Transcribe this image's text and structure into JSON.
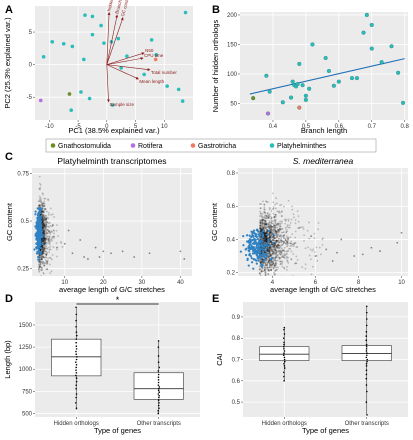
{
  "colors": {
    "panel_bg": "#ebebeb",
    "grid_major": "#ffffff",
    "grid_minor": "#f4f4f4",
    "gnathostomulida": "#6b8e23",
    "rotifera": "#b46ee0",
    "gastrotricha": "#f07b63",
    "platyhelminthes": "#2bbcbc",
    "arrow": "#8b1a1a",
    "regression": "#1f6fb5",
    "density_blue": "#2f82c4"
  },
  "legend": {
    "items": [
      {
        "label": "Gnathostomulida",
        "color": "#6b8e23"
      },
      {
        "label": "Rotifera",
        "color": "#b46ee0"
      },
      {
        "label": "Gastrotricha",
        "color": "#f07b63"
      },
      {
        "label": "Platyhelminthes",
        "color": "#2bbcbc"
      }
    ]
  },
  "chart_data": [
    {
      "panel": "A",
      "type": "scatter",
      "xlabel": "PC1 (38.5% explained var.)",
      "ylabel": "PC2 (25.3% explained var.)",
      "xlim": [
        -12.5,
        15
      ],
      "ylim": [
        -8.5,
        9
      ],
      "xticks": [
        -10,
        -5,
        0,
        5,
        10
      ],
      "yticks": [
        -5,
        0,
        5
      ],
      "points": [
        {
          "x": -11.5,
          "y": -5.5,
          "group": "rotifera"
        },
        {
          "x": -6.5,
          "y": -4.5,
          "group": "gnathostomulida"
        },
        {
          "x": 8.5,
          "y": 0.8,
          "group": "gastrotricha"
        },
        {
          "x": -11,
          "y": 1.2,
          "group": "platyhelminthes"
        },
        {
          "x": -9.5,
          "y": 3.5,
          "group": "platyhelminthes"
        },
        {
          "x": -7.5,
          "y": 3.2,
          "group": "platyhelminthes"
        },
        {
          "x": -6,
          "y": 2.8,
          "group": "platyhelminthes"
        },
        {
          "x": -4,
          "y": 0.8,
          "group": "platyhelminthes"
        },
        {
          "x": -3.8,
          "y": 7.6,
          "group": "platyhelminthes"
        },
        {
          "x": -2.5,
          "y": 7.4,
          "group": "platyhelminthes"
        },
        {
          "x": -1,
          "y": 6.0,
          "group": "platyhelminthes"
        },
        {
          "x": -2.5,
          "y": 4.6,
          "group": "platyhelminthes"
        },
        {
          "x": -0.5,
          "y": 3.3,
          "group": "platyhelminthes"
        },
        {
          "x": 0.8,
          "y": 3.5,
          "group": "platyhelminthes"
        },
        {
          "x": 2,
          "y": 4.0,
          "group": "platyhelminthes"
        },
        {
          "x": -4.5,
          "y": -4.2,
          "group": "platyhelminthes"
        },
        {
          "x": -3,
          "y": -5.2,
          "group": "platyhelminthes"
        },
        {
          "x": -6.2,
          "y": -7.0,
          "group": "platyhelminthes"
        },
        {
          "x": 2.5,
          "y": -0.5,
          "group": "platyhelminthes"
        },
        {
          "x": 3.5,
          "y": 1.3,
          "group": "platyhelminthes"
        },
        {
          "x": 6.5,
          "y": -1.5,
          "group": "platyhelminthes"
        },
        {
          "x": 7.8,
          "y": 3.8,
          "group": "platyhelminthes"
        },
        {
          "x": 8.6,
          "y": 1.5,
          "group": "platyhelminthes"
        },
        {
          "x": 10.5,
          "y": -3.3,
          "group": "platyhelminthes"
        },
        {
          "x": 12.5,
          "y": -3.8,
          "group": "platyhelminthes"
        },
        {
          "x": 13.7,
          "y": 8.0,
          "group": "platyhelminthes"
        },
        {
          "x": 13.2,
          "y": -5.6,
          "group": "platyhelminthes"
        },
        {
          "x": 1,
          "y": -6.2,
          "group": "platyhelminthes"
        }
      ],
      "loadings": [
        {
          "label": "hidden orthologs",
          "x": 0.4,
          "y": 8.0
        },
        {
          "label": "Branch length",
          "x": 1.8,
          "y": 7.6
        },
        {
          "label": "GC content",
          "x": 2.8,
          "y": 7.2
        },
        {
          "label": "Sample size",
          "x": 0.3,
          "y": -5.7
        },
        {
          "label": "Mean length",
          "x": 5.5,
          "y": -2.2
        },
        {
          "label": "Total number",
          "x": 7.5,
          "y": -0.8
        },
        {
          "label": "N50",
          "x": 6.5,
          "y": 1.8
        },
        {
          "label": "CPU time",
          "x": 6.3,
          "y": 1.0
        }
      ]
    },
    {
      "panel": "B",
      "type": "scatter",
      "xlabel": "Branch length",
      "ylabel": "Number of hidden orthologs",
      "xlim": [
        0.3,
        0.81
      ],
      "ylim": [
        22,
        205
      ],
      "xticks": [
        0.4,
        0.5,
        0.6,
        0.7,
        0.8
      ],
      "yticks": [
        50,
        100,
        150,
        200
      ],
      "regression": {
        "x": [
          0.33,
          0.8
        ],
        "y": [
          66,
          126
        ]
      },
      "points": [
        {
          "x": 0.34,
          "y": 59,
          "group": "gnathostomulida"
        },
        {
          "x": 0.385,
          "y": 33,
          "group": "rotifera"
        },
        {
          "x": 0.48,
          "y": 43,
          "group": "gastrotricha"
        },
        {
          "x": 0.38,
          "y": 97,
          "group": "platyhelminthes"
        },
        {
          "x": 0.39,
          "y": 70,
          "group": "platyhelminthes"
        },
        {
          "x": 0.43,
          "y": 52,
          "group": "platyhelminthes"
        },
        {
          "x": 0.455,
          "y": 60,
          "group": "platyhelminthes"
        },
        {
          "x": 0.46,
          "y": 87,
          "group": "platyhelminthes"
        },
        {
          "x": 0.465,
          "y": 81,
          "group": "platyhelminthes"
        },
        {
          "x": 0.47,
          "y": 79,
          "group": "platyhelminthes"
        },
        {
          "x": 0.475,
          "y": 83,
          "group": "platyhelminthes"
        },
        {
          "x": 0.48,
          "y": 117,
          "group": "platyhelminthes"
        },
        {
          "x": 0.49,
          "y": 81,
          "group": "platyhelminthes"
        },
        {
          "x": 0.5,
          "y": 63,
          "group": "platyhelminthes"
        },
        {
          "x": 0.5,
          "y": 56,
          "group": "platyhelminthes"
        },
        {
          "x": 0.51,
          "y": 75,
          "group": "platyhelminthes"
        },
        {
          "x": 0.52,
          "y": 150,
          "group": "platyhelminthes"
        },
        {
          "x": 0.56,
          "y": 127,
          "group": "platyhelminthes"
        },
        {
          "x": 0.57,
          "y": 105,
          "group": "platyhelminthes"
        },
        {
          "x": 0.585,
          "y": 80,
          "group": "platyhelminthes"
        },
        {
          "x": 0.6,
          "y": 87,
          "group": "platyhelminthes"
        },
        {
          "x": 0.64,
          "y": 93,
          "group": "platyhelminthes"
        },
        {
          "x": 0.655,
          "y": 93,
          "group": "platyhelminthes"
        },
        {
          "x": 0.675,
          "y": 170,
          "group": "platyhelminthes"
        },
        {
          "x": 0.685,
          "y": 200,
          "group": "platyhelminthes"
        },
        {
          "x": 0.7,
          "y": 183,
          "group": "platyhelminthes"
        },
        {
          "x": 0.7,
          "y": 143,
          "group": "platyhelminthes"
        },
        {
          "x": 0.73,
          "y": 120,
          "group": "platyhelminthes"
        },
        {
          "x": 0.76,
          "y": 147,
          "group": "platyhelminthes"
        },
        {
          "x": 0.78,
          "y": 102,
          "group": "platyhelminthes"
        },
        {
          "x": 0.795,
          "y": 51,
          "group": "platyhelminthes"
        }
      ]
    },
    {
      "panel": "C-left",
      "type": "scatter",
      "title": "Platyhelminth transcriptomes",
      "xlabel": "average length of G/C stretches",
      "ylabel": "GC content",
      "xlim": [
        1.5,
        43
      ],
      "ylim": [
        0.21,
        0.78
      ],
      "xticks": [
        10,
        20,
        30,
        40
      ],
      "yticks": [
        0.25,
        0.5,
        0.75
      ],
      "density": {
        "x_center": 3.2,
        "x_spread": 1.6,
        "y_center": 0.43,
        "y_spread": 0.08,
        "n": 1200
      },
      "highlight": {
        "x_center": 3.3,
        "x_spread": 0.35,
        "y_center": 0.44,
        "y_spread": 0.06,
        "n": 250
      },
      "outliers": [
        {
          "x": 8,
          "y": 0.36
        },
        {
          "x": 10,
          "y": 0.38
        },
        {
          "x": 12,
          "y": 0.33
        },
        {
          "x": 14,
          "y": 0.4
        },
        {
          "x": 16,
          "y": 0.3
        },
        {
          "x": 18,
          "y": 0.36
        },
        {
          "x": 20,
          "y": 0.34
        },
        {
          "x": 22,
          "y": 0.33
        },
        {
          "x": 25,
          "y": 0.34
        },
        {
          "x": 28,
          "y": 0.31
        },
        {
          "x": 32,
          "y": 0.33
        },
        {
          "x": 40,
          "y": 0.34
        },
        {
          "x": 41,
          "y": 0.3
        },
        {
          "x": 11,
          "y": 0.45
        },
        {
          "x": 15,
          "y": 0.31
        },
        {
          "x": 19,
          "y": 0.31
        }
      ]
    },
    {
      "panel": "C-right",
      "type": "scatter",
      "title": "S. mediterranea",
      "xlabel": "average length of G/C stretches",
      "ylabel": "GC content",
      "xlim": [
        2.4,
        10.3
      ],
      "ylim": [
        0.18,
        0.83
      ],
      "xticks": [
        4,
        6,
        8,
        10
      ],
      "yticks": [
        0.2,
        0.4,
        0.6,
        0.8
      ],
      "density": {
        "x_center": 3.4,
        "x_spread": 0.9,
        "y_center": 0.38,
        "y_spread": 0.09,
        "n": 1500
      },
      "highlight": {
        "x_center": 3.3,
        "x_spread": 0.3,
        "y_center": 0.36,
        "y_spread": 0.05,
        "n": 200
      },
      "outliers": [
        {
          "x": 6,
          "y": 0.3
        },
        {
          "x": 6.5,
          "y": 0.34
        },
        {
          "x": 7,
          "y": 0.32
        },
        {
          "x": 7.2,
          "y": 0.4
        },
        {
          "x": 7.8,
          "y": 0.3
        },
        {
          "x": 8.2,
          "y": 0.31
        },
        {
          "x": 9,
          "y": 0.33
        },
        {
          "x": 9.8,
          "y": 0.38
        },
        {
          "x": 10,
          "y": 0.44
        },
        {
          "x": 5.8,
          "y": 0.42
        },
        {
          "x": 6.8,
          "y": 0.27
        },
        {
          "x": 8.6,
          "y": 0.35
        }
      ]
    },
    {
      "panel": "D",
      "type": "box",
      "xlabel": "Type of genes",
      "ylabel": "Length (bp)",
      "ylim": [
        460,
        1760
      ],
      "yticks": [
        500,
        750,
        1000,
        1250,
        1500
      ],
      "significance": "*",
      "boxes": [
        {
          "name": "Hidden orthologs",
          "min": 540,
          "q1": 925,
          "median": 1140,
          "q3": 1340,
          "max": 1700,
          "points": [
            560,
            620,
            680,
            720,
            780,
            820,
            860,
            900,
            930,
            960,
            990,
            1020,
            1050,
            1080,
            1110,
            1140,
            1170,
            1200,
            1230,
            1260,
            1300,
            1340,
            1380,
            1420,
            1480,
            1550,
            1620,
            1700
          ]
        },
        {
          "name": "Other transcripts",
          "min": 490,
          "q1": 660,
          "median": 780,
          "q3": 960,
          "max": 1320,
          "points": [
            500,
            530,
            560,
            590,
            620,
            650,
            680,
            700,
            720,
            740,
            760,
            780,
            800,
            820,
            850,
            880,
            910,
            940,
            980,
            1020,
            1080,
            1150,
            1250,
            1320
          ]
        }
      ]
    },
    {
      "panel": "E",
      "type": "box",
      "xlabel": "Type of genes",
      "ylabel": "CAI",
      "ylim": [
        0.43,
        0.97
      ],
      "yticks": [
        0.5,
        0.6,
        0.7,
        0.8,
        0.9
      ],
      "boxes": [
        {
          "name": "Hidden orthologs",
          "min": 0.6,
          "q1": 0.695,
          "median": 0.725,
          "q3": 0.76,
          "max": 0.85,
          "points": [
            0.6,
            0.62,
            0.64,
            0.66,
            0.67,
            0.68,
            0.69,
            0.7,
            0.71,
            0.72,
            0.73,
            0.74,
            0.75,
            0.76,
            0.77,
            0.78,
            0.8,
            0.82,
            0.84,
            0.85
          ]
        },
        {
          "name": "Other transcripts",
          "min": 0.44,
          "q1": 0.695,
          "median": 0.728,
          "q3": 0.765,
          "max": 0.95,
          "points": [
            0.44,
            0.5,
            0.55,
            0.58,
            0.61,
            0.63,
            0.65,
            0.67,
            0.68,
            0.69,
            0.7,
            0.71,
            0.72,
            0.73,
            0.74,
            0.75,
            0.76,
            0.77,
            0.79,
            0.81,
            0.83,
            0.86,
            0.89,
            0.92,
            0.95
          ]
        }
      ]
    }
  ]
}
